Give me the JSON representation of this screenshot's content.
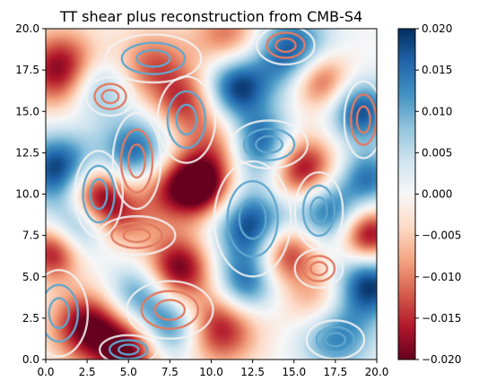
{
  "chart_data": {
    "type": "heatmap",
    "title": "TT shear plus reconstruction from CMB-S4",
    "xlabel": "",
    "ylabel": "",
    "xlim": [
      0.0,
      20.0
    ],
    "ylim": [
      0.0,
      20.0
    ],
    "x_ticks": [
      "0.0",
      "2.5",
      "5.0",
      "7.5",
      "10.0",
      "12.5",
      "15.0",
      "17.5",
      "20.0"
    ],
    "y_ticks": [
      "0.0",
      "2.5",
      "5.0",
      "7.5",
      "10.0",
      "12.5",
      "15.0",
      "17.5",
      "20.0"
    ],
    "colormap": "RdBu",
    "color_range": [
      -0.02,
      0.02
    ],
    "colorbar_ticks": [
      "0.020",
      "0.015",
      "0.010",
      "0.005",
      "0.000",
      "−0.005",
      "−0.010",
      "−0.015",
      "−0.020"
    ],
    "colors": {
      "high": "#053061",
      "mid": "#f7f7f7",
      "low": "#67001f"
    },
    "grid": false,
    "features": [
      {
        "x": 1.0,
        "y": 17.5,
        "value": -0.02,
        "width": 1.6
      },
      {
        "x": 3.0,
        "y": 16.5,
        "value": 0.012,
        "width": 1.3
      },
      {
        "x": 0.8,
        "y": 11.5,
        "value": 0.02,
        "width": 1.5
      },
      {
        "x": 3.0,
        "y": 10.0,
        "value": -0.02,
        "width": 1.3
      },
      {
        "x": 5.5,
        "y": 12.5,
        "value": 0.018,
        "width": 1.5
      },
      {
        "x": 7.5,
        "y": 10.5,
        "value": -0.015,
        "width": 1.6
      },
      {
        "x": 9.5,
        "y": 10.5,
        "value": -0.02,
        "width": 1.3
      },
      {
        "x": 6.5,
        "y": 17.8,
        "value": -0.012,
        "width": 1.5
      },
      {
        "x": 8.5,
        "y": 15.5,
        "value": -0.014,
        "width": 1.4
      },
      {
        "x": 11.0,
        "y": 19.5,
        "value": -0.012,
        "width": 1.5
      },
      {
        "x": 11.5,
        "y": 16.5,
        "value": 0.02,
        "width": 1.4
      },
      {
        "x": 13.0,
        "y": 13.0,
        "value": 0.018,
        "width": 1.4
      },
      {
        "x": 12.5,
        "y": 8.0,
        "value": 0.02,
        "width": 1.6
      },
      {
        "x": 14.5,
        "y": 6.5,
        "value": -0.018,
        "width": 1.3
      },
      {
        "x": 15.5,
        "y": 11.5,
        "value": -0.02,
        "width": 1.4
      },
      {
        "x": 17.0,
        "y": 9.0,
        "value": 0.016,
        "width": 1.4
      },
      {
        "x": 19.5,
        "y": 7.5,
        "value": -0.02,
        "width": 1.2
      },
      {
        "x": 19.5,
        "y": 4.5,
        "value": 0.02,
        "width": 1.4
      },
      {
        "x": 16.5,
        "y": 3.5,
        "value": -0.01,
        "width": 1.4
      },
      {
        "x": 17.5,
        "y": 1.5,
        "value": 0.015,
        "width": 1.5
      },
      {
        "x": 15.0,
        "y": 18.5,
        "value": 0.02,
        "width": 1.6
      },
      {
        "x": 16.5,
        "y": 17.0,
        "value": -0.018,
        "width": 1.3
      },
      {
        "x": 19.0,
        "y": 15.0,
        "value": 0.018,
        "width": 1.3
      },
      {
        "x": 8.0,
        "y": 5.5,
        "value": -0.02,
        "width": 1.4
      },
      {
        "x": 7.5,
        "y": 2.0,
        "value": 0.016,
        "width": 1.4
      },
      {
        "x": 2.5,
        "y": 2.0,
        "value": -0.02,
        "width": 1.5
      },
      {
        "x": 5.5,
        "y": 4.0,
        "value": 0.012,
        "width": 1.3
      },
      {
        "x": 5.0,
        "y": 0.5,
        "value": -0.02,
        "width": 1.4
      },
      {
        "x": 10.5,
        "y": 2.0,
        "value": -0.018,
        "width": 1.6
      },
      {
        "x": 12.0,
        "y": 4.5,
        "value": 0.016,
        "width": 1.3
      },
      {
        "x": 0.5,
        "y": 6.5,
        "value": -0.018,
        "width": 1.2
      },
      {
        "x": 2.0,
        "y": 8.0,
        "value": 0.014,
        "width": 1.3
      },
      {
        "x": 4.5,
        "y": 8.5,
        "value": -0.01,
        "width": 1.3
      },
      {
        "x": 10.5,
        "y": 13.0,
        "value": -0.01,
        "width": 1.3
      },
      {
        "x": 19.5,
        "y": 11.0,
        "value": 0.014,
        "width": 1.2
      }
    ],
    "contours": [
      {
        "x": 3.2,
        "y": 10.0,
        "value": 0.015,
        "rx": 0.5,
        "ry": 0.9
      },
      {
        "x": 5.5,
        "y": 12.0,
        "value": -0.015,
        "rx": 0.5,
        "ry": 1.0
      },
      {
        "x": 6.5,
        "y": 18.2,
        "value": 0.015,
        "rx": 1.0,
        "ry": 0.5
      },
      {
        "x": 3.9,
        "y": 15.9,
        "value": -0.015,
        "rx": 0.5,
        "ry": 0.4
      },
      {
        "x": 8.5,
        "y": 14.5,
        "value": 0.015,
        "rx": 0.6,
        "ry": 0.9
      },
      {
        "x": 12.5,
        "y": 8.5,
        "value": 0.015,
        "rx": 0.8,
        "ry": 1.2
      },
      {
        "x": 13.5,
        "y": 13.0,
        "value": 0.015,
        "rx": 0.8,
        "ry": 0.5
      },
      {
        "x": 14.5,
        "y": 19.0,
        "value": -0.015,
        "rx": 0.6,
        "ry": 0.4
      },
      {
        "x": 16.5,
        "y": 9.0,
        "value": 0.015,
        "rx": 0.5,
        "ry": 0.8
      },
      {
        "x": 19.2,
        "y": 14.5,
        "value": -0.015,
        "rx": 0.4,
        "ry": 0.8
      },
      {
        "x": 17.5,
        "y": 1.2,
        "value": 0.015,
        "rx": 0.6,
        "ry": 0.4
      },
      {
        "x": 5.5,
        "y": 7.5,
        "value": -0.015,
        "rx": 0.8,
        "ry": 0.4
      },
      {
        "x": 7.5,
        "y": 3.0,
        "value": -0.015,
        "rx": 0.9,
        "ry": 0.6
      },
      {
        "x": 16.5,
        "y": 5.5,
        "value": -0.015,
        "rx": 0.5,
        "ry": 0.4
      },
      {
        "x": 5.0,
        "y": 0.6,
        "value": 0.015,
        "rx": 0.6,
        "ry": 0.3
      },
      {
        "x": 0.8,
        "y": 2.8,
        "value": 0.015,
        "rx": 0.6,
        "ry": 0.9
      }
    ]
  }
}
